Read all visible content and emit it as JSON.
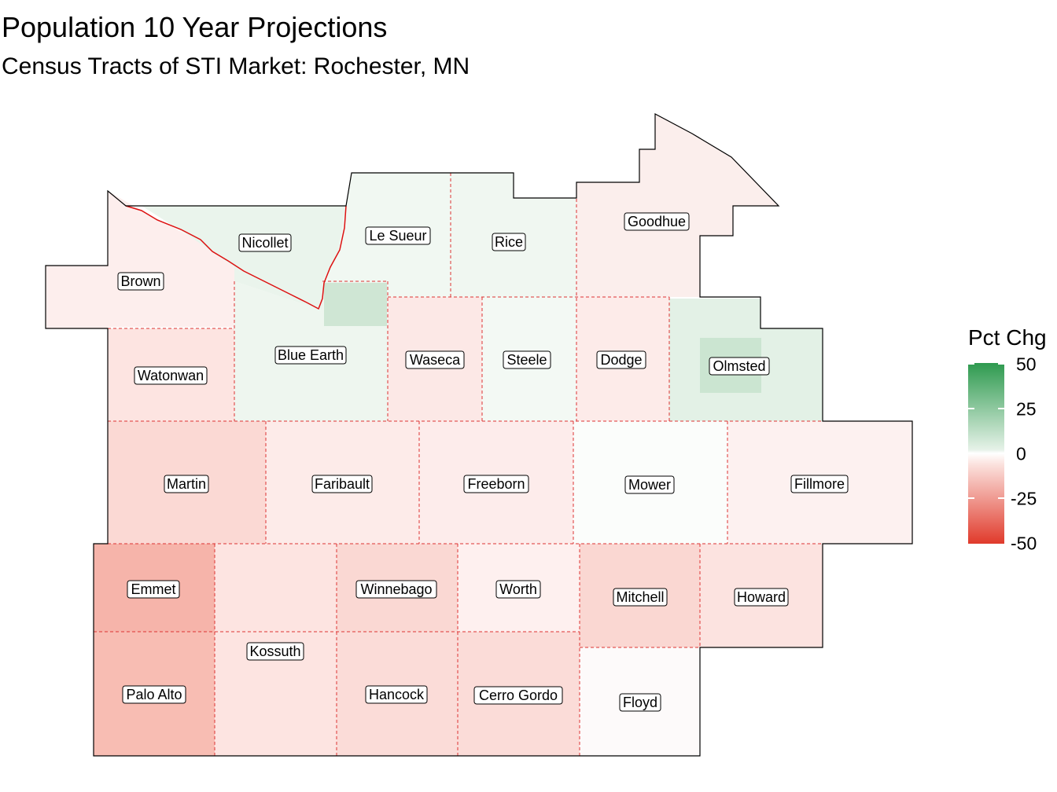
{
  "title": "Population 10 Year Projections",
  "subtitle": "Census Tracts of STI Market: Rochester, MN",
  "legend": {
    "title": "Pct Chg",
    "ticks": [
      "50",
      "25",
      "0",
      "-25",
      "-50"
    ],
    "low_color": "#e03a2b",
    "mid_color": "#ffffff",
    "high_color": "#2e9a4f"
  },
  "county_labels": {
    "brown": "Brown",
    "nicollet": "Nicollet",
    "le_sueur": "Le Sueur",
    "rice": "Rice",
    "goodhue": "Goodhue",
    "watonwan": "Watonwan",
    "blue_earth": "Blue Earth",
    "waseca": "Waseca",
    "steele": "Steele",
    "dodge": "Dodge",
    "olmsted": "Olmsted",
    "martin": "Martin",
    "faribault": "Faribault",
    "freeborn": "Freeborn",
    "mower": "Mower",
    "fillmore": "Fillmore",
    "emmet": "Emmet",
    "winnebago": "Winnebago",
    "worth": "Worth",
    "mitchell": "Mitchell",
    "howard": "Howard",
    "kossuth": "Kossuth",
    "palo_alto": "Palo Alto",
    "hancock": "Hancock",
    "cerro_gordo": "Cerro Gordo",
    "floyd": "Floyd"
  }
}
